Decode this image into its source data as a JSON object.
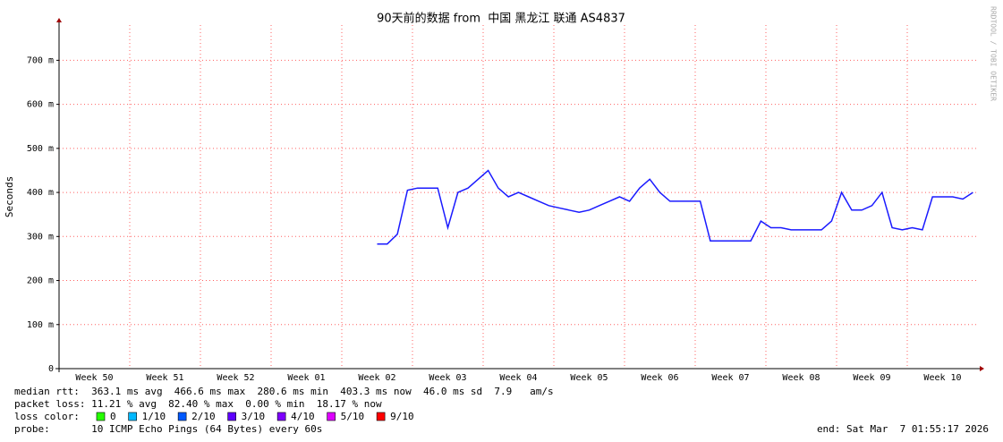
{
  "chart_data": {
    "type": "line",
    "title": "90天前的数据 from  中国 黑龙江 联通 AS4837",
    "y_label": "Seconds",
    "side_label": "RRDTOOL / TOBI OETIKER",
    "ylim": [
      0,
      0.78
    ],
    "yticks": [
      0,
      {
        "value": 0.1,
        "label": "100 m"
      },
      {
        "value": 0.2,
        "label": "200 m"
      },
      {
        "value": 0.3,
        "label": "300 m"
      },
      {
        "value": 0.4,
        "label": "400 m"
      },
      {
        "value": 0.5,
        "label": "500 m"
      },
      {
        "value": 0.6,
        "label": "600 m"
      },
      {
        "value": 0.7,
        "label": "700 m"
      }
    ],
    "grid": true,
    "categories": [
      null,
      null,
      null,
      "Week 50",
      null,
      null,
      null,
      null,
      null,
      null,
      "Week 51",
      null,
      null,
      null,
      null,
      null,
      null,
      "Week 52",
      null,
      null,
      null,
      null,
      null,
      null,
      "Week 01",
      null,
      null,
      null,
      null,
      null,
      null,
      "Week 02",
      null,
      null,
      null,
      null,
      null,
      null,
      "Week 03",
      null,
      null,
      null,
      null,
      null,
      null,
      "Week 04",
      null,
      null,
      null,
      null,
      null,
      null,
      "Week 05",
      null,
      null,
      null,
      null,
      null,
      null,
      "Week 06",
      null,
      null,
      null,
      null,
      null,
      null,
      "Week 07",
      null,
      null,
      null,
      null,
      null,
      null,
      "Week 08",
      null,
      null,
      null,
      null,
      null,
      null,
      "Week 09",
      null,
      null,
      null,
      null,
      null,
      null,
      "Week 10",
      null,
      null,
      null
    ],
    "series": [
      {
        "name": "median rtt:",
        "color": "#1a1aff",
        "values": [
          null,
          null,
          null,
          null,
          null,
          null,
          null,
          null,
          null,
          null,
          null,
          null,
          null,
          null,
          null,
          null,
          null,
          null,
          null,
          null,
          null,
          null,
          null,
          null,
          null,
          null,
          null,
          null,
          null,
          null,
          null,
          0.283,
          0.283,
          0.305,
          0.405,
          0.41,
          0.41,
          0.41,
          0.32,
          0.4,
          0.41,
          0.43,
          0.45,
          0.41,
          0.39,
          0.4,
          0.39,
          0.38,
          0.37,
          0.365,
          0.36,
          0.355,
          0.36,
          0.37,
          0.38,
          0.39,
          0.38,
          0.41,
          0.43,
          0.4,
          0.38,
          0.38,
          0.38,
          0.38,
          0.29,
          0.29,
          0.29,
          0.29,
          0.29,
          0.335,
          0.32,
          0.32,
          0.315,
          0.315,
          0.315,
          0.315,
          0.335,
          0.4,
          0.36,
          0.36,
          0.37,
          0.4,
          0.32,
          0.315,
          0.32,
          0.315,
          0.39,
          0.39,
          0.39,
          0.385,
          0.4
        ]
      }
    ],
    "stats": [
      "median rtt:  363.1 ms avg  466.6 ms max  280.6 ms min  403.3 ms now  46.0 ms sd  7.9   am/s",
      "packet loss: 11.21 % avg  82.40 % max  0.00 % min  18.17 % now"
    ],
    "loss_legend": {
      "label": "loss color:",
      "items": [
        {
          "name": "0",
          "color": "#26ff00"
        },
        {
          "name": "1/10",
          "color": "#00b8ff"
        },
        {
          "name": "2/10",
          "color": "#0059ff"
        },
        {
          "name": "3/10",
          "color": "#5e00ff"
        },
        {
          "name": "4/10",
          "color": "#7e00ff"
        },
        {
          "name": "5/10",
          "color": "#dd00ff"
        },
        {
          "name": "9/10",
          "color": "#ff0000"
        }
      ]
    },
    "probe": "probe:       10 ICMP Echo Pings (64 Bytes) every 60s",
    "end": "end: Sat Mar  7 01:55:17 2026"
  }
}
